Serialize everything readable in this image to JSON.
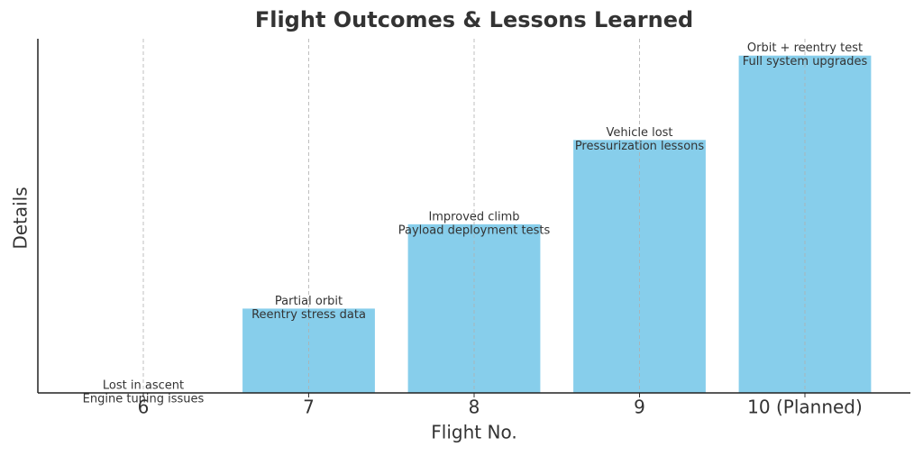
{
  "chart_data": {
    "type": "bar",
    "title": "Flight Outcomes & Lessons Learned",
    "x_label": "Flight No.",
    "y_label": "Details",
    "categories": [
      "6",
      "7",
      "8",
      "9",
      "10 (Planned)"
    ],
    "values": [
      0,
      1,
      2,
      3,
      4
    ],
    "bar_labels": [
      [
        "Lost in ascent",
        "Engine tuning issues"
      ],
      [
        "Partial orbit",
        "Reentry stress data"
      ],
      [
        "Improved climb",
        "Payload deployment tests"
      ],
      [
        "Vehicle lost",
        "Pressurization lessons"
      ],
      [
        "Orbit + reentry test",
        "Full system upgrades"
      ]
    ],
    "color": "#87ceeb",
    "ylim": [
      0,
      4.2
    ],
    "yticks": [],
    "grid": true
  }
}
